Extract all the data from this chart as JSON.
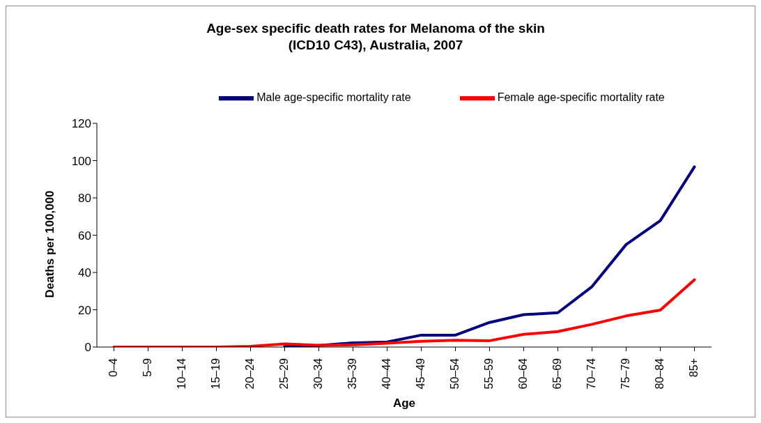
{
  "chart_data": {
    "type": "line",
    "title": "Age-sex specific death rates for Melanoma of the skin\n(ICD10 C43), Australia, 2007",
    "xlabel": "Age",
    "ylabel": "Deaths per 100,000",
    "categories": [
      "0–4",
      "5–9",
      "10–14",
      "15–19",
      "20–24",
      "25–29",
      "30–34",
      "35–39",
      "40–44",
      "45–49",
      "50–54",
      "55–59",
      "60–64",
      "65–69",
      "70–74",
      "75–79",
      "80–84",
      "85+"
    ],
    "series": [
      {
        "name": "Male age-specific mortality rate",
        "color": "#000080",
        "values": [
          null,
          null,
          null,
          null,
          null,
          0.3,
          0.8,
          2.2,
          2.7,
          6.4,
          6.4,
          13.2,
          17.4,
          18.4,
          32.4,
          55,
          67.8,
          96.7
        ]
      },
      {
        "name": "Female age-specific mortality rate",
        "color": "#ff0000",
        "values": [
          0,
          0,
          0,
          0,
          0.4,
          1.7,
          0.9,
          1.2,
          2.1,
          3.1,
          3.6,
          3.4,
          6.8,
          8.3,
          12.2,
          16.7,
          19.8,
          36.1
        ]
      }
    ],
    "ylim": [
      0,
      120
    ],
    "yticks": [
      0,
      20,
      40,
      60,
      80,
      100,
      120
    ],
    "grid": false,
    "legend": "top",
    "marker": "none",
    "line_style": "solid"
  }
}
